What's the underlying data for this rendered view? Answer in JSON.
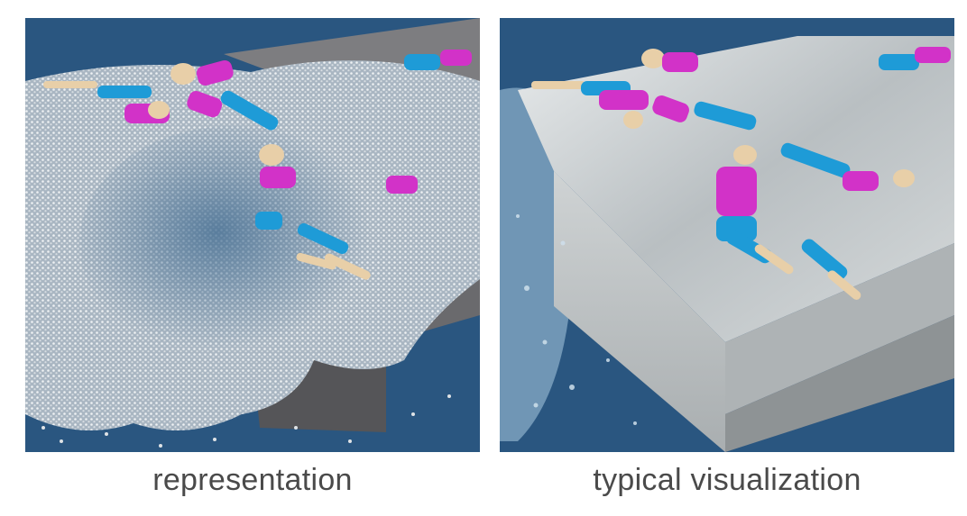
{
  "captions": {
    "left": "representation",
    "right": "typical visualization"
  },
  "colors": {
    "background": "#2a5680",
    "channel_gray": "#8c8c8c",
    "particle_white": "#dfe3e6",
    "figure_magenta": "#d232c8",
    "figure_blue": "#1e9bd7",
    "figure_skin": "#e8cfa8"
  }
}
